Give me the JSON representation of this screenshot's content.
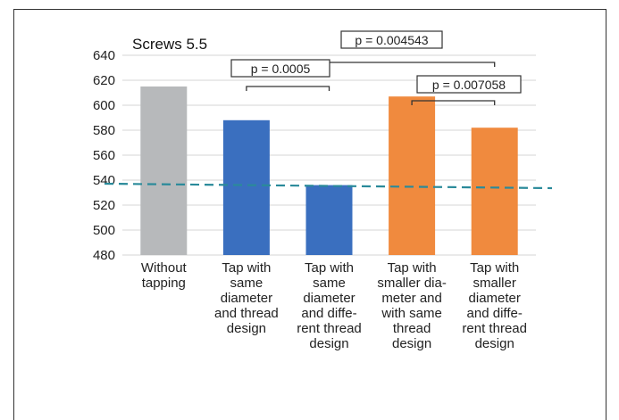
{
  "chart_data": {
    "type": "bar",
    "title": "Screws 5.5",
    "xlabel": "",
    "ylabel": "",
    "ylim": [
      480,
      640
    ],
    "yticks": [
      480,
      500,
      520,
      540,
      560,
      580,
      600,
      620,
      640
    ],
    "categories": [
      [
        "Without",
        "tapping"
      ],
      [
        "Tap with",
        "same",
        "diameter",
        "and thread",
        "design"
      ],
      [
        "Tap with",
        "same",
        "diameter",
        "and diffe-",
        "rent thread",
        "design"
      ],
      [
        "Tap with",
        "smaller dia-",
        "meter and",
        "with same",
        "thread",
        "design"
      ],
      [
        "Tap with",
        "smaller",
        "diameter",
        "and diffe-",
        "rent thread",
        "design"
      ]
    ],
    "values": [
      615,
      588,
      536,
      607,
      582
    ],
    "bar_colors": [
      "#b7b9bb",
      "#3a6fbf",
      "#3a6fbf",
      "#f08a3e",
      "#f08a3e"
    ],
    "reference_line": {
      "value": 535,
      "style": "dashed",
      "color": "#2a8a9a"
    },
    "grid": true,
    "annotations": [
      {
        "text": "p = 0.004543",
        "from": 2,
        "to": 4
      },
      {
        "text": "p = 0.0005",
        "from": 1,
        "to": 2
      },
      {
        "text": "p = 0.007058",
        "from": 3,
        "to": 4
      }
    ]
  }
}
